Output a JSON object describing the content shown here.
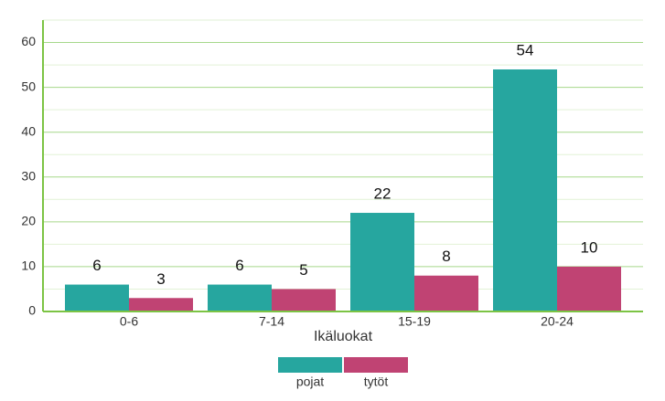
{
  "chart_data": {
    "type": "bar",
    "x_label": "Ikäluokat",
    "categories": [
      "0-6",
      "7-14",
      "15-19",
      "20-24"
    ],
    "series": [
      {
        "name": "pojat",
        "color": "#26a69f",
        "values": [
          6,
          6,
          22,
          54
        ]
      },
      {
        "name": "tytöt",
        "color": "#c04373",
        "values": [
          3,
          5,
          8,
          10
        ]
      }
    ],
    "ylim": [
      0,
      65
    ],
    "yticks": [
      0,
      10,
      20,
      30,
      40,
      50,
      60
    ],
    "minor_yticks": [
      5,
      15,
      25,
      35,
      45,
      55,
      65
    ],
    "grid": true,
    "legend": "bottom"
  }
}
